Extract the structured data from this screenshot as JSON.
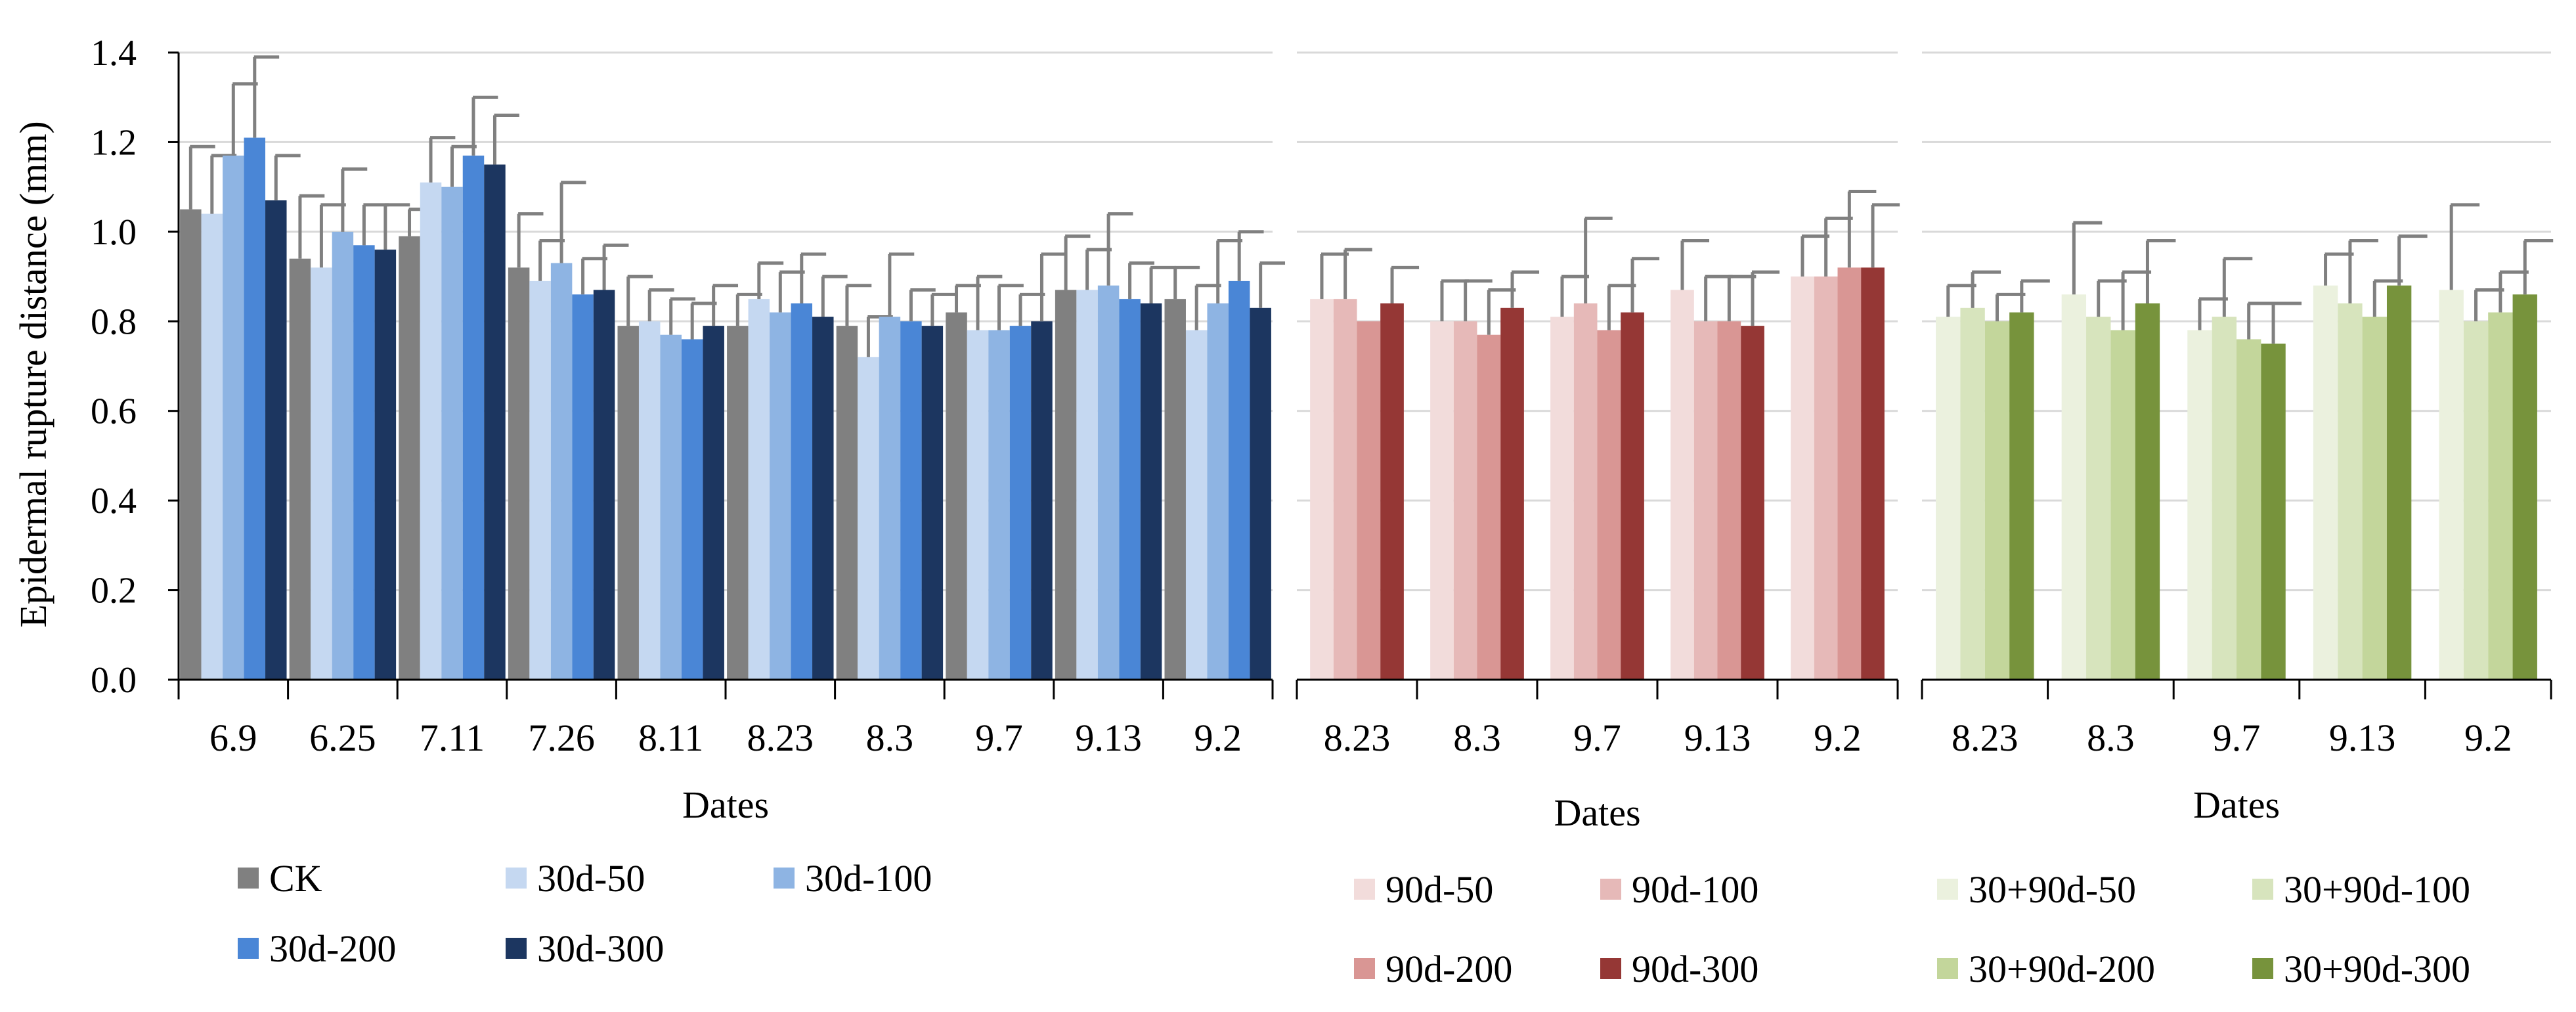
{
  "chart_data": [
    {
      "type": "bar",
      "panel": "left",
      "ylabel": "Epidermal rupture distance (mm)",
      "xlabel": "Dates",
      "ylim": [
        0,
        1.4
      ],
      "yticks": [
        "0.0",
        "0.2",
        "0.4",
        "0.6",
        "0.8",
        "1.0",
        "1.2",
        "1.4"
      ],
      "grid": true,
      "categories": [
        "6.9",
        "6.25",
        "7.11",
        "7.26",
        "8.11",
        "8.23",
        "8.3",
        "9.7",
        "9.13",
        "9.2"
      ],
      "series": [
        {
          "name": "CK",
          "color": "#808080",
          "values": [
            1.05,
            0.94,
            0.99,
            0.92,
            0.79,
            0.79,
            0.79,
            0.82,
            0.87,
            0.85
          ],
          "errors": [
            0.14,
            0.14,
            0.06,
            0.12,
            0.11,
            0.07,
            0.09,
            0.06,
            0.12,
            0.07
          ]
        },
        {
          "name": "30d-50",
          "color": "#c5d8f1",
          "values": [
            1.04,
            0.92,
            1.11,
            0.89,
            0.8,
            0.85,
            0.72,
            0.78,
            0.87,
            0.78
          ],
          "errors": [
            0.13,
            0.14,
            0.1,
            0.09,
            0.07,
            0.08,
            0.09,
            0.12,
            0.09,
            0.1
          ]
        },
        {
          "name": "30d-100",
          "color": "#8eb4e3",
          "values": [
            1.17,
            1.0,
            1.1,
            0.93,
            0.77,
            0.82,
            0.81,
            0.78,
            0.88,
            0.84
          ],
          "errors": [
            0.16,
            0.14,
            0.09,
            0.18,
            0.08,
            0.09,
            0.14,
            0.1,
            0.16,
            0.14
          ]
        },
        {
          "name": "30d-200",
          "color": "#4a86d6",
          "values": [
            1.21,
            0.97,
            1.17,
            0.86,
            0.76,
            0.84,
            0.8,
            0.79,
            0.85,
            0.89
          ],
          "errors": [
            0.18,
            0.09,
            0.13,
            0.08,
            0.08,
            0.11,
            0.07,
            0.07,
            0.08,
            0.11
          ]
        },
        {
          "name": "30d-300",
          "color": "#1c3660",
          "values": [
            1.07,
            0.96,
            1.15,
            0.87,
            0.79,
            0.81,
            0.79,
            0.8,
            0.84,
            0.83
          ],
          "errors": [
            0.1,
            0.1,
            0.11,
            0.1,
            0.09,
            0.09,
            0.07,
            0.15,
            0.08,
            0.1
          ]
        }
      ]
    },
    {
      "type": "bar",
      "panel": "middle",
      "xlabel": "Dates",
      "ylim": [
        0,
        1.4
      ],
      "grid": true,
      "categories": [
        "8.23",
        "8.3",
        "9.7",
        "9.13",
        "9.2"
      ],
      "series": [
        {
          "name": "90d-50",
          "color": "#f2dcdb",
          "values": [
            0.85,
            0.8,
            0.81,
            0.87,
            0.9
          ],
          "errors": [
            0.1,
            0.09,
            0.09,
            0.11,
            0.09
          ]
        },
        {
          "name": "90d-100",
          "color": "#e6b9b8",
          "values": [
            0.85,
            0.8,
            0.84,
            0.8,
            0.9
          ],
          "errors": [
            0.11,
            0.09,
            0.19,
            0.1,
            0.13
          ]
        },
        {
          "name": "90d-200",
          "color": "#d99694",
          "values": [
            0.8,
            0.77,
            0.78,
            0.8,
            0.92
          ],
          "errors": [
            0.0,
            0.1,
            0.1,
            0.1,
            0.17
          ]
        },
        {
          "name": "90d-300",
          "color": "#953735",
          "values": [
            0.84,
            0.83,
            0.82,
            0.79,
            0.92
          ],
          "errors": [
            0.08,
            0.08,
            0.12,
            0.12,
            0.14
          ]
        }
      ]
    },
    {
      "type": "bar",
      "panel": "right",
      "xlabel": "Dates",
      "ylim": [
        0,
        1.4
      ],
      "grid": true,
      "categories": [
        "8.23",
        "8.3",
        "9.7",
        "9.13",
        "9.2"
      ],
      "series": [
        {
          "name": "30+90d-50",
          "color": "#ebf1de",
          "values": [
            0.81,
            0.86,
            0.78,
            0.88,
            0.87
          ],
          "errors": [
            0.07,
            0.16,
            0.07,
            0.07,
            0.19
          ]
        },
        {
          "name": "30+90d-100",
          "color": "#d7e4bd",
          "values": [
            0.83,
            0.81,
            0.81,
            0.84,
            0.8
          ],
          "errors": [
            0.08,
            0.08,
            0.13,
            0.14,
            0.07
          ]
        },
        {
          "name": "30+90d-200",
          "color": "#c3d69b",
          "values": [
            0.8,
            0.78,
            0.76,
            0.81,
            0.82
          ],
          "errors": [
            0.06,
            0.13,
            0.08,
            0.08,
            0.09
          ]
        },
        {
          "name": "30+90d-300",
          "color": "#77933c",
          "values": [
            0.82,
            0.84,
            0.75,
            0.88,
            0.86
          ],
          "errors": [
            0.07,
            0.14,
            0.09,
            0.11,
            0.12
          ]
        }
      ]
    }
  ]
}
